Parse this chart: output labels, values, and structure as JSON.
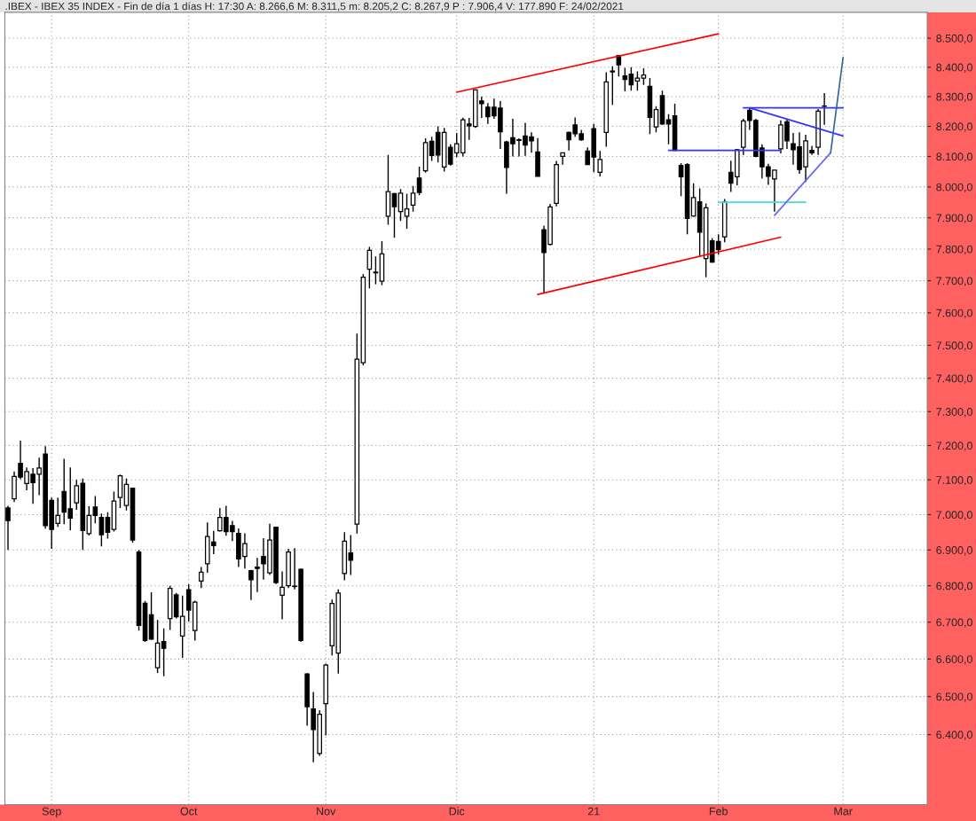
{
  "chart_data": {
    "type": "candlestick",
    "title": ".IBEX - IBEX 35 INDEX - Fin de día 1 días H: 17:30 A: 8.266,6 M: 8.311,5 m: 8.205,2 C: 8.267,9 P : 7.906,4 V: 177.890 F: 24/02/2021",
    "categories": [
      null,
      null,
      null,
      null,
      null,
      null,
      null,
      "Sep",
      null,
      null,
      null,
      null,
      null,
      null,
      null,
      null,
      null,
      null,
      null,
      null,
      null,
      null,
      null,
      null,
      null,
      null,
      null,
      null,
      null,
      "Oct",
      null,
      null,
      null,
      null,
      null,
      null,
      null,
      null,
      null,
      null,
      null,
      null,
      null,
      null,
      null,
      null,
      null,
      null,
      null,
      null,
      null,
      "Nov",
      null,
      null,
      null,
      null,
      null,
      null,
      null,
      null,
      null,
      null,
      null,
      null,
      null,
      null,
      null,
      null,
      null,
      null,
      null,
      null,
      "Dic",
      null,
      null,
      null,
      null,
      null,
      null,
      null,
      null,
      null,
      null,
      null,
      null,
      null,
      null,
      null,
      null,
      null,
      null,
      null,
      null,
      null,
      "21",
      null,
      null,
      null,
      null,
      null,
      null,
      null,
      null,
      null,
      null,
      null,
      null,
      null,
      null,
      null,
      null,
      null,
      null,
      null,
      "Feb",
      null,
      null,
      null,
      null,
      null,
      null,
      null,
      null,
      null,
      null,
      null,
      null,
      null,
      null,
      null,
      null,
      null,
      null,
      null,
      "Mar",
      null,
      null,
      null,
      null,
      null,
      null,
      null,
      null,
      null,
      null,
      null,
      null,
      null
    ],
    "ohlc": [
      [
        7019,
        7025,
        6900,
        6983
      ],
      [
        7045,
        7124,
        7036,
        7110
      ],
      [
        7148,
        7214,
        7102,
        7108
      ],
      [
        7089,
        7136,
        7070,
        7124
      ],
      [
        7116,
        7134,
        7031,
        7092
      ],
      [
        7116,
        7164,
        7056,
        7134
      ],
      [
        7175,
        7198,
        6960,
        6969
      ],
      [
        7041,
        7049,
        6903,
        6958
      ],
      [
        6975,
        7049,
        6965,
        6998
      ],
      [
        7066,
        7161,
        6973,
        7007
      ],
      [
        7017,
        7136,
        6955,
        6990
      ],
      [
        7034,
        7100,
        7014,
        7083
      ],
      [
        7090,
        7104,
        6900,
        6955
      ],
      [
        6946,
        7024,
        6941,
        6998
      ],
      [
        7022,
        7053,
        6975,
        6998
      ],
      [
        6992,
        7003,
        6910,
        6943
      ],
      [
        6992,
        7007,
        6932,
        6950
      ],
      [
        6958,
        7066,
        6952,
        7039
      ],
      [
        7049,
        7115,
        7019,
        7112
      ],
      [
        7026,
        7104,
        7012,
        7087
      ],
      [
        7076,
        7076,
        6921,
        6928
      ],
      [
        6894,
        6900,
        6677,
        6691
      ],
      [
        6752,
        6758,
        6646,
        6650
      ],
      [
        6720,
        6782,
        6652,
        6654
      ],
      [
        6577,
        6706,
        6563,
        6643
      ],
      [
        6647,
        6683,
        6554,
        6629
      ],
      [
        6710,
        6800,
        6679,
        6793
      ],
      [
        6775,
        6780,
        6710,
        6715
      ],
      [
        6662,
        6773,
        6603,
        6716
      ],
      [
        6789,
        6804,
        6702,
        6733
      ],
      [
        6677,
        6759,
        6650,
        6755
      ],
      [
        6813,
        6852,
        6794,
        6838
      ],
      [
        6861,
        6978,
        6836,
        6938
      ],
      [
        6922,
        6954,
        6888,
        6912
      ],
      [
        6954,
        7019,
        6952,
        6992
      ],
      [
        6992,
        7025,
        6940,
        6952
      ],
      [
        6969,
        6982,
        6925,
        6952
      ],
      [
        6947,
        6961,
        6852,
        6875
      ],
      [
        6882,
        6947,
        6848,
        6918
      ],
      [
        6842,
        6844,
        6761,
        6817
      ],
      [
        6852,
        6878,
        6783,
        6848
      ],
      [
        6882,
        6933,
        6817,
        6861
      ],
      [
        6836,
        6974,
        6830,
        6928
      ],
      [
        6964,
        6965,
        6805,
        6809
      ],
      [
        6774,
        6840,
        6708,
        6796
      ],
      [
        6800,
        6903,
        6794,
        6894
      ],
      [
        6799,
        6905,
        6790,
        6798
      ],
      [
        6846,
        6848,
        6646,
        6650
      ],
      [
        6560,
        6562,
        6423,
        6473
      ],
      [
        6467,
        6512,
        6328,
        6413
      ],
      [
        6351,
        6464,
        6345,
        6453
      ],
      [
        6481,
        6588,
        6398,
        6584
      ],
      [
        6636,
        6762,
        6610,
        6751
      ],
      [
        6616,
        6790,
        6561,
        6780
      ],
      [
        6834,
        6950,
        6815,
        6925
      ],
      [
        6892,
        6942,
        6830,
        6871
      ],
      [
        6973,
        7536,
        6946,
        7458
      ],
      [
        7447,
        7721,
        7439,
        7711
      ],
      [
        7736,
        7807,
        7676,
        7796
      ],
      [
        7727,
        7777,
        7689,
        7725
      ],
      [
        7699,
        7825,
        7686,
        7785
      ],
      [
        7905,
        8105,
        7878,
        7985
      ],
      [
        7978,
        7980,
        7836,
        7936
      ],
      [
        7920,
        7993,
        7890,
        7980
      ],
      [
        7905,
        7978,
        7865,
        7929
      ],
      [
        7941,
        8003,
        7920,
        7980
      ],
      [
        8029,
        8066,
        7973,
        7982
      ],
      [
        8053,
        8160,
        8047,
        8146
      ],
      [
        8150,
        8165,
        8085,
        8103
      ],
      [
        8180,
        8200,
        8080,
        8105
      ],
      [
        8065,
        8195,
        8050,
        8180
      ],
      [
        8130,
        8140,
        8070,
        8075
      ],
      [
        8112,
        8178,
        8098,
        8142
      ],
      [
        8112,
        8229,
        8100,
        8222
      ],
      [
        8208,
        8228,
        8155,
        8202
      ],
      [
        8200,
        8323,
        8195,
        8323
      ],
      [
        8285,
        8300,
        8228,
        8276
      ],
      [
        8264,
        8278,
        8208,
        8232
      ],
      [
        8264,
        8293,
        8225,
        8235
      ],
      [
        8261,
        8285,
        8125,
        8182
      ],
      [
        8148,
        8152,
        7978,
        8064
      ],
      [
        8162,
        8225,
        8100,
        8142
      ],
      [
        8153,
        8160,
        8100,
        8155
      ],
      [
        8168,
        8212,
        8102,
        8138
      ],
      [
        8165,
        8180,
        8112,
        8152
      ],
      [
        8115,
        8161,
        8035,
        8035
      ],
      [
        7862,
        7875,
        7660,
        7789
      ],
      [
        7815,
        7945,
        7812,
        7935
      ],
      [
        7947,
        8085,
        7937,
        8073
      ],
      [
        8100,
        8112,
        8073,
        8112
      ],
      [
        8180,
        8182,
        8120,
        8155
      ],
      [
        8205,
        8230,
        8165,
        8175
      ],
      [
        8175,
        8188,
        8152,
        8155
      ],
      [
        8118,
        8130,
        8073,
        8073
      ],
      [
        8192,
        8208,
        8048,
        8098
      ],
      [
        8048,
        8118,
        8034,
        8090
      ],
      [
        8180,
        8383,
        8132,
        8350
      ],
      [
        8384,
        8403,
        8272,
        8387
      ],
      [
        8440,
        8440,
        8368,
        8408
      ],
      [
        8370,
        8398,
        8318,
        8358
      ],
      [
        8376,
        8400,
        8320,
        8340
      ],
      [
        8353,
        8386,
        8320,
        8363
      ],
      [
        8363,
        8396,
        8340,
        8373
      ],
      [
        8335,
        8363,
        8174,
        8230
      ],
      [
        8198,
        8268,
        8180,
        8256
      ],
      [
        8303,
        8320,
        8205,
        8208
      ],
      [
        8222,
        8241,
        8140,
        8208
      ],
      [
        8235,
        8276,
        8118,
        8120
      ],
      [
        8070,
        8078,
        7970,
        8033
      ],
      [
        8073,
        8078,
        7847,
        7898
      ],
      [
        7906,
        8012,
        7903,
        7965
      ],
      [
        7952,
        7995,
        7777,
        7854
      ],
      [
        7770,
        7946,
        7711,
        7932
      ],
      [
        7826,
        7835,
        7757,
        7759
      ],
      [
        7824,
        7847,
        7782,
        7798
      ],
      [
        7839,
        7961,
        7822,
        7952
      ],
      [
        8048,
        8086,
        7984,
        8012
      ],
      [
        8033,
        8125,
        8005,
        8122
      ],
      [
        8130,
        8225,
        8105,
        8218
      ],
      [
        8254,
        8264,
        8188,
        8220
      ],
      [
        8220,
        8225,
        8098,
        8100
      ],
      [
        8128,
        8140,
        8028,
        8066
      ],
      [
        8066,
        8076,
        8007,
        8035
      ],
      [
        8026,
        8055,
        7920,
        8055
      ],
      [
        8125,
        8220,
        8110,
        8205
      ],
      [
        8215,
        8225,
        8125,
        8152
      ],
      [
        8142,
        8178,
        8073,
        8122
      ],
      [
        8132,
        8180,
        8043,
        8057
      ],
      [
        8066,
        8172,
        8016,
        8152
      ],
      [
        8120,
        8135,
        8105,
        8112
      ],
      [
        8130,
        8258,
        8105,
        8251
      ],
      [
        8267,
        8312,
        8205,
        8268
      ],
      null,
      null,
      null,
      null,
      null,
      null,
      null,
      null,
      null,
      null,
      null,
      null,
      null,
      null,
      null,
      null
    ],
    "series": [
      {
        "type": "line",
        "color": "#ff0000",
        "values": [
          null,
          null,
          null,
          null,
          null,
          null,
          null,
          null,
          null,
          null,
          null,
          null,
          null,
          null,
          null,
          null,
          null,
          null,
          null,
          null,
          null,
          null,
          null,
          null,
          null,
          null,
          null,
          null,
          null,
          null,
          null,
          null,
          null,
          null,
          null,
          null,
          null,
          null,
          null,
          null,
          null,
          null,
          null,
          null,
          null,
          null,
          null,
          null,
          null,
          null,
          null,
          null,
          null,
          null,
          null,
          null,
          null,
          null,
          null,
          null,
          null,
          null,
          null,
          null,
          null,
          null,
          null,
          null,
          null,
          null,
          null,
          null,
          8315,
          null,
          null,
          null,
          null,
          null,
          null,
          null,
          null,
          null,
          null,
          null,
          null,
          null,
          null,
          null,
          null,
          null,
          null,
          null,
          null,
          null,
          null,
          null,
          null,
          null,
          null,
          null,
          null,
          null,
          null,
          null,
          null,
          null,
          null,
          null,
          null,
          null,
          null,
          null,
          null,
          null,
          8515,
          null,
          null,
          null,
          null,
          null,
          null,
          null,
          null,
          null,
          null,
          null,
          null,
          null,
          null,
          null,
          null,
          null,
          null,
          null,
          null,
          null,
          null,
          null,
          null,
          null,
          null,
          null,
          null,
          null,
          null,
          null,
          null,
          null
        ]
      },
      {
        "type": "line",
        "color": "#ff0000",
        "values": [
          null,
          null,
          null,
          null,
          null,
          null,
          null,
          null,
          null,
          null,
          null,
          null,
          null,
          null,
          null,
          null,
          null,
          null,
          null,
          null,
          null,
          null,
          null,
          null,
          null,
          null,
          null,
          null,
          null,
          null,
          null,
          null,
          null,
          null,
          null,
          null,
          null,
          null,
          null,
          null,
          null,
          null,
          null,
          null,
          null,
          null,
          null,
          null,
          null,
          null,
          null,
          null,
          null,
          null,
          null,
          null,
          null,
          null,
          null,
          null,
          null,
          null,
          null,
          null,
          null,
          null,
          null,
          null,
          null,
          null,
          null,
          null,
          null,
          null,
          null,
          null,
          null,
          null,
          null,
          null,
          null,
          null,
          null,
          null,
          null,
          7657,
          null,
          null,
          null,
          null,
          null,
          null,
          null,
          null,
          null,
          null,
          null,
          null,
          null,
          null,
          null,
          null,
          null,
          null,
          null,
          null,
          null,
          null,
          null,
          null,
          null,
          null,
          null,
          null,
          null,
          null,
          null,
          null,
          null,
          null,
          null,
          null,
          null,
          null,
          7838,
          null,
          null,
          null,
          null,
          null,
          null,
          null,
          null,
          null,
          null,
          null,
          null,
          null,
          null,
          null,
          null,
          null,
          null,
          null,
          null,
          null,
          null,
          null
        ]
      },
      {
        "type": "line",
        "color": "#3333ff",
        "values": [
          null,
          null,
          null,
          null,
          null,
          null,
          null,
          null,
          null,
          null,
          null,
          null,
          null,
          null,
          null,
          null,
          null,
          null,
          null,
          null,
          null,
          null,
          null,
          null,
          null,
          null,
          null,
          null,
          null,
          null,
          null,
          null,
          null,
          null,
          null,
          null,
          null,
          null,
          null,
          null,
          null,
          null,
          null,
          null,
          null,
          null,
          null,
          null,
          null,
          null,
          null,
          null,
          null,
          null,
          null,
          null,
          null,
          null,
          null,
          null,
          null,
          null,
          null,
          null,
          null,
          null,
          null,
          null,
          null,
          null,
          null,
          null,
          null,
          null,
          null,
          null,
          null,
          null,
          null,
          null,
          null,
          null,
          null,
          null,
          null,
          null,
          null,
          null,
          null,
          null,
          null,
          null,
          null,
          null,
          null,
          null,
          null,
          null,
          null,
          null,
          null,
          null,
          null,
          null,
          null,
          null,
          null,
          null,
          null,
          null,
          null,
          null,
          null,
          null,
          null,
          null,
          null,
          null,
          8262,
          null,
          null,
          null,
          null,
          null,
          null,
          null,
          null,
          null,
          null,
          null,
          null,
          null,
          null,
          null,
          8262,
          null,
          null,
          null,
          null,
          null,
          null,
          null,
          null,
          null,
          null,
          null,
          null,
          null
        ]
      },
      {
        "type": "line",
        "color": "#3333ff",
        "values": [
          null,
          null,
          null,
          null,
          null,
          null,
          null,
          null,
          null,
          null,
          null,
          null,
          null,
          null,
          null,
          null,
          null,
          null,
          null,
          null,
          null,
          null,
          null,
          null,
          null,
          null,
          null,
          null,
          null,
          null,
          null,
          null,
          null,
          null,
          null,
          null,
          null,
          null,
          null,
          null,
          null,
          null,
          null,
          null,
          null,
          null,
          null,
          null,
          null,
          null,
          null,
          null,
          null,
          null,
          null,
          null,
          null,
          null,
          null,
          null,
          null,
          null,
          null,
          null,
          null,
          null,
          null,
          null,
          null,
          null,
          null,
          null,
          null,
          null,
          null,
          null,
          null,
          null,
          null,
          null,
          null,
          null,
          null,
          null,
          null,
          null,
          null,
          null,
          null,
          null,
          null,
          null,
          null,
          null,
          null,
          null,
          null,
          null,
          null,
          null,
          null,
          null,
          null,
          null,
          null,
          null,
          null,
          null,
          null,
          null,
          null,
          null,
          null,
          null,
          null,
          null,
          null,
          null,
          null,
          8262,
          null,
          null,
          null,
          null,
          null,
          null,
          null,
          null,
          null,
          null,
          null,
          null,
          null,
          null,
          8168,
          null,
          null,
          null,
          null,
          null,
          null,
          null,
          null,
          null,
          null,
          null,
          null,
          null
        ]
      },
      {
        "type": "line",
        "color": "#3333ff",
        "values": [
          null,
          null,
          null,
          null,
          null,
          null,
          null,
          null,
          null,
          null,
          null,
          null,
          null,
          null,
          null,
          null,
          null,
          null,
          null,
          null,
          null,
          null,
          null,
          null,
          null,
          null,
          null,
          null,
          null,
          null,
          null,
          null,
          null,
          null,
          null,
          null,
          null,
          null,
          null,
          null,
          null,
          null,
          null,
          null,
          null,
          null,
          null,
          null,
          null,
          null,
          null,
          null,
          null,
          null,
          null,
          null,
          null,
          null,
          null,
          null,
          null,
          null,
          null,
          null,
          null,
          null,
          null,
          null,
          null,
          null,
          null,
          null,
          null,
          null,
          null,
          null,
          null,
          null,
          null,
          null,
          null,
          null,
          null,
          null,
          null,
          null,
          null,
          null,
          null,
          null,
          null,
          null,
          null,
          null,
          null,
          null,
          null,
          null,
          null,
          null,
          null,
          null,
          null,
          null,
          null,
          null,
          8120,
          null,
          null,
          null,
          null,
          null,
          null,
          null,
          null,
          null,
          null,
          null,
          null,
          null,
          null,
          null,
          null,
          null,
          8120,
          null,
          null,
          null,
          null,
          null,
          null,
          null,
          null,
          null,
          null,
          null,
          null,
          null,
          null,
          null,
          null,
          null,
          null,
          null,
          null,
          null,
          null,
          null
        ]
      },
      {
        "type": "line",
        "color": "#40e0e0",
        "values": [
          null,
          null,
          null,
          null,
          null,
          null,
          null,
          null,
          null,
          null,
          null,
          null,
          null,
          null,
          null,
          null,
          null,
          null,
          null,
          null,
          null,
          null,
          null,
          null,
          null,
          null,
          null,
          null,
          null,
          null,
          null,
          null,
          null,
          null,
          null,
          null,
          null,
          null,
          null,
          null,
          null,
          null,
          null,
          null,
          null,
          null,
          null,
          null,
          null,
          null,
          null,
          null,
          null,
          null,
          null,
          null,
          null,
          null,
          null,
          null,
          null,
          null,
          null,
          null,
          null,
          null,
          null,
          null,
          null,
          null,
          null,
          null,
          null,
          null,
          null,
          null,
          null,
          null,
          null,
          null,
          null,
          null,
          null,
          null,
          null,
          null,
          null,
          null,
          null,
          null,
          null,
          null,
          null,
          null,
          null,
          null,
          null,
          null,
          null,
          null,
          null,
          null,
          null,
          null,
          null,
          null,
          null,
          null,
          null,
          null,
          null,
          null,
          null,
          null,
          7950,
          null,
          null,
          null,
          null,
          null,
          null,
          null,
          null,
          null,
          null,
          null,
          null,
          null,
          7950,
          null,
          null,
          null,
          null,
          null,
          null,
          null,
          null,
          null,
          null,
          null,
          null,
          null,
          null,
          null,
          null,
          null,
          null,
          null
        ]
      },
      {
        "type": "line",
        "color": "#6666ff",
        "values": [
          null,
          null,
          null,
          null,
          null,
          null,
          null,
          null,
          null,
          null,
          null,
          null,
          null,
          null,
          null,
          null,
          null,
          null,
          null,
          null,
          null,
          null,
          null,
          null,
          null,
          null,
          null,
          null,
          null,
          null,
          null,
          null,
          null,
          null,
          null,
          null,
          null,
          null,
          null,
          null,
          null,
          null,
          null,
          null,
          null,
          null,
          null,
          null,
          null,
          null,
          null,
          null,
          null,
          null,
          null,
          null,
          null,
          null,
          null,
          null,
          null,
          null,
          null,
          null,
          null,
          null,
          null,
          null,
          null,
          null,
          null,
          null,
          null,
          null,
          null,
          null,
          null,
          null,
          null,
          null,
          null,
          null,
          null,
          null,
          null,
          null,
          null,
          null,
          null,
          null,
          null,
          null,
          null,
          null,
          null,
          null,
          null,
          null,
          null,
          null,
          null,
          null,
          null,
          null,
          null,
          null,
          null,
          null,
          null,
          null,
          null,
          null,
          null,
          null,
          null,
          null,
          null,
          null,
          null,
          null,
          null,
          null,
          null,
          7908,
          null,
          null,
          null,
          null,
          null,
          null,
          null,
          null,
          8112,
          null,
          null,
          null,
          null,
          null,
          null,
          null,
          null,
          null,
          null,
          null,
          null,
          null,
          null,
          null
        ]
      },
      {
        "type": "line",
        "color": "#336699",
        "values": [
          null,
          null,
          null,
          null,
          null,
          null,
          null,
          null,
          null,
          null,
          null,
          null,
          null,
          null,
          null,
          null,
          null,
          null,
          null,
          null,
          null,
          null,
          null,
          null,
          null,
          null,
          null,
          null,
          null,
          null,
          null,
          null,
          null,
          null,
          null,
          null,
          null,
          null,
          null,
          null,
          null,
          null,
          null,
          null,
          null,
          null,
          null,
          null,
          null,
          null,
          null,
          null,
          null,
          null,
          null,
          null,
          null,
          null,
          null,
          null,
          null,
          null,
          null,
          null,
          null,
          null,
          null,
          null,
          null,
          null,
          null,
          null,
          null,
          null,
          null,
          null,
          null,
          null,
          null,
          null,
          null,
          null,
          null,
          null,
          null,
          null,
          null,
          null,
          null,
          null,
          null,
          null,
          null,
          null,
          null,
          null,
          null,
          null,
          null,
          null,
          null,
          null,
          null,
          null,
          null,
          null,
          null,
          null,
          null,
          null,
          null,
          null,
          null,
          null,
          null,
          null,
          null,
          null,
          null,
          null,
          null,
          null,
          null,
          null,
          null,
          null,
          null,
          null,
          null,
          null,
          null,
          null,
          8112,
          null,
          8433,
          null,
          null,
          null,
          null,
          null,
          null,
          null,
          null,
          null,
          null,
          null,
          null,
          null
        ]
      }
    ],
    "log": true,
    "ylim": [
      6220,
      8590
    ],
    "yticks": [
      {
        "value": 6400,
        "label": "6.400,0"
      },
      {
        "value": 6500,
        "label": "6.500,0"
      },
      {
        "value": 6600,
        "label": "6.600,0"
      },
      {
        "value": 6700,
        "label": "6.700,0"
      },
      {
        "value": 6800,
        "label": "6.800,0"
      },
      {
        "value": 6900,
        "label": "6.900,0"
      },
      {
        "value": 7000,
        "label": "7.000,0"
      },
      {
        "value": 7100,
        "label": "7.100,0"
      },
      {
        "value": 7200,
        "label": "7.200,0"
      },
      {
        "value": 7300,
        "label": "7.300,0"
      },
      {
        "value": 7400,
        "label": "7.400,0"
      },
      {
        "value": 7500,
        "label": "7.500,0"
      },
      {
        "value": 7600,
        "label": "7.600,0"
      },
      {
        "value": 7700,
        "label": "7.700,0"
      },
      {
        "value": 7800,
        "label": "7.800,0"
      },
      {
        "value": 7900,
        "label": "7.900,0"
      },
      {
        "value": 8000,
        "label": "8.000,0"
      },
      {
        "value": 8100,
        "label": "8.100,0"
      },
      {
        "value": 8200,
        "label": "8.200,0"
      },
      {
        "value": 8300,
        "label": "8.300,0"
      },
      {
        "value": 8400,
        "label": "8.400,0"
      },
      {
        "value": 8500,
        "label": "8.500,0"
      }
    ],
    "grid": true
  }
}
